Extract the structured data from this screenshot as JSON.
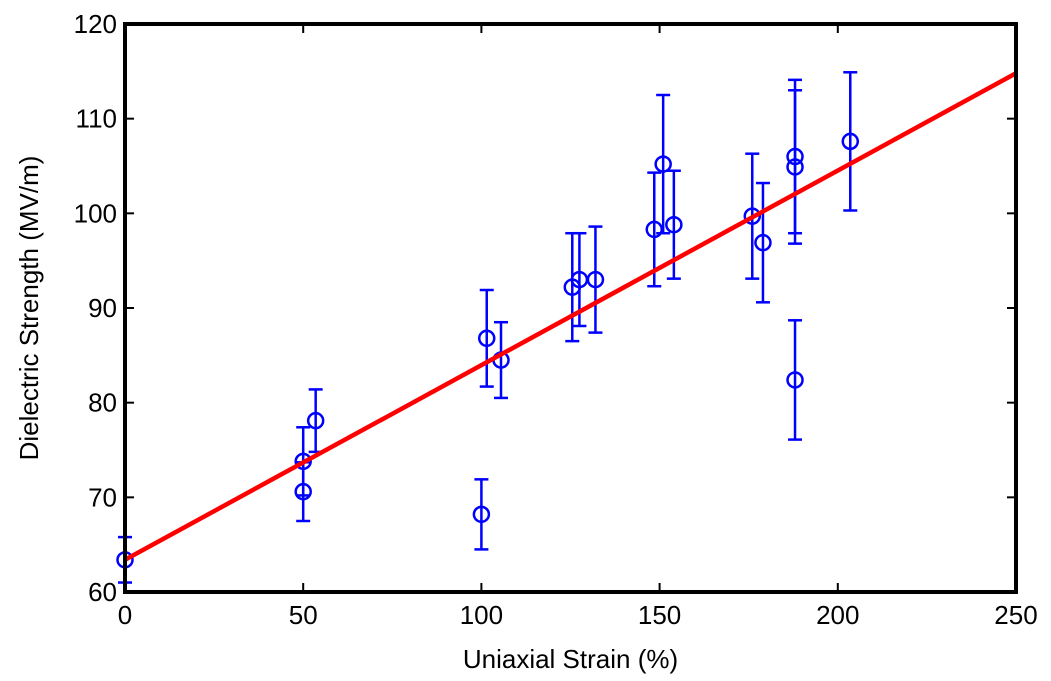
{
  "chart_data": {
    "type": "scatter",
    "title": "",
    "xlabel": "Uniaxial Strain (%)",
    "ylabel": "Dielectric Strength (MV/m)",
    "xlim": [
      0,
      250
    ],
    "ylim": [
      60,
      120
    ],
    "xticks": [
      0,
      50,
      100,
      150,
      200,
      250
    ],
    "yticks": [
      60,
      70,
      80,
      90,
      100,
      110,
      120
    ],
    "xtick_labels": [
      "0",
      "50",
      "100",
      "150",
      "200",
      "250"
    ],
    "ytick_labels": [
      "60",
      "70",
      "80",
      "90",
      "100",
      "110",
      "120"
    ],
    "grid": false,
    "legend": "none",
    "series": [
      {
        "kind": "errorbar-markers",
        "color": "#0000ff",
        "marker": "circle",
        "points": [
          {
            "x": 0,
            "y": 63.4,
            "err": 2.4
          },
          {
            "x": 50,
            "y": 73.8,
            "err": 3.6
          },
          {
            "x": 50,
            "y": 70.6,
            "err": 3.1
          },
          {
            "x": 53.5,
            "y": 78.1,
            "err": 3.3
          },
          {
            "x": 100,
            "y": 68.2,
            "err": 3.7
          },
          {
            "x": 101.5,
            "y": 86.8,
            "err": 5.1
          },
          {
            "x": 105.5,
            "y": 84.5,
            "err": 4.0
          },
          {
            "x": 125.5,
            "y": 92.2,
            "err": 5.7
          },
          {
            "x": 127.5,
            "y": 93.0,
            "err": 4.9
          },
          {
            "x": 132,
            "y": 93.0,
            "err": 5.6
          },
          {
            "x": 148.5,
            "y": 98.3,
            "err": 6.0
          },
          {
            "x": 151,
            "y": 105.2,
            "err": 7.3
          },
          {
            "x": 154,
            "y": 98.8,
            "err": 5.7
          },
          {
            "x": 176,
            "y": 99.7,
            "err": 6.6
          },
          {
            "x": 179,
            "y": 96.9,
            "err": 6.3
          },
          {
            "x": 188,
            "y": 106.0,
            "err": 8.1
          },
          {
            "x": 188,
            "y": 104.9,
            "err": 8.1
          },
          {
            "x": 188,
            "y": 82.4,
            "err": 6.3
          },
          {
            "x": 203.5,
            "y": 107.6,
            "err": 7.3
          }
        ]
      },
      {
        "kind": "fit-line",
        "color": "#ff0000",
        "x": [
          0,
          250
        ],
        "y": [
          63.4,
          114.8
        ]
      }
    ]
  }
}
